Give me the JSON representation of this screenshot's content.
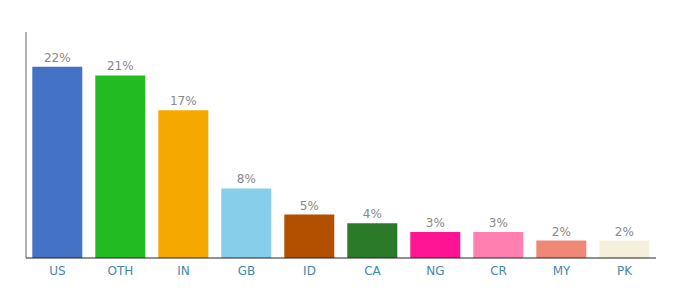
{
  "chart_data": {
    "type": "bar",
    "categories": [
      "US",
      "OTH",
      "IN",
      "GB",
      "ID",
      "CA",
      "NG",
      "CR",
      "MY",
      "PK"
    ],
    "values": [
      22,
      21,
      17,
      8,
      5,
      4,
      3,
      3,
      2,
      2
    ],
    "value_labels": [
      "22%",
      "21%",
      "17%",
      "8%",
      "5%",
      "4%",
      "3%",
      "3%",
      "2%",
      "2%"
    ],
    "colors": [
      "#4472c4",
      "#22bb22",
      "#f5a800",
      "#87ceeb",
      "#b35000",
      "#2a7a2a",
      "#ff1493",
      "#ff80b0",
      "#f08878",
      "#f5f0dc"
    ],
    "ylim": [
      0,
      26
    ],
    "yticks": [],
    "data_labels": true,
    "tick_labels": "x",
    "grid": false
  }
}
